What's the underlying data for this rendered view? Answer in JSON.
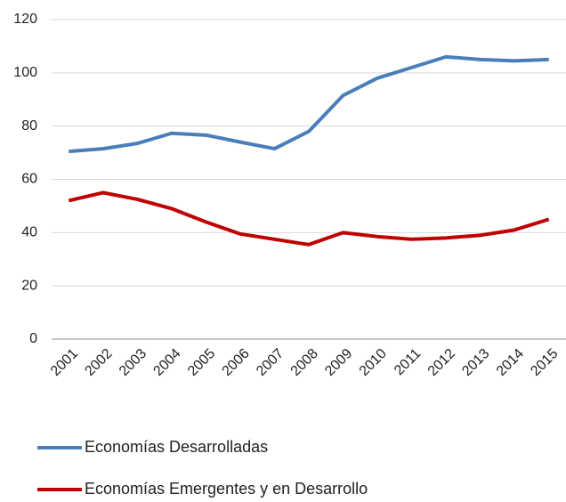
{
  "chart_data": {
    "type": "line",
    "categories": [
      "2001",
      "2002",
      "2003",
      "2004",
      "2005",
      "2006",
      "2007",
      "2008",
      "2009",
      "2010",
      "2011",
      "2012",
      "2013",
      "2014",
      "2015"
    ],
    "series": [
      {
        "name": "Economías Desarrolladas",
        "color": "#4a7ebb",
        "values": [
          70.5,
          71.5,
          73.5,
          77.3,
          76.6,
          74,
          71.5,
          78,
          91.5,
          98,
          102,
          106,
          105,
          104.5,
          105
        ]
      },
      {
        "name": "Economías Emergentes y en Desarrollo",
        "color": "#c00000",
        "values": [
          52,
          55,
          52.5,
          49,
          44,
          39.5,
          37.5,
          35.5,
          40,
          38.5,
          37.5,
          38,
          39,
          41,
          45
        ]
      }
    ],
    "ylim": [
      0,
      120
    ],
    "yticks": [
      0,
      20,
      40,
      60,
      80,
      100,
      120
    ],
    "grid": true,
    "legend": "bottom"
  }
}
